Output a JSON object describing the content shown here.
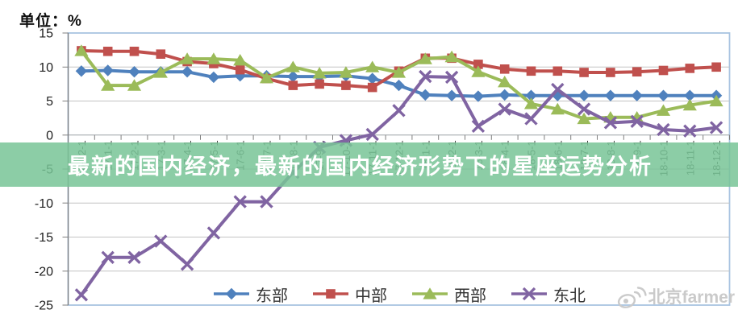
{
  "header": {
    "unit_label": "单位：%"
  },
  "overlay": {
    "title": "最新的国内经济，最新的国内经济形势下的星座运势分析",
    "band_color": "rgba(120,196,150,0.85)",
    "text_color": "#ffffff"
  },
  "watermark": {
    "icon": "weibo-eye-icon",
    "text": "北京farmer",
    "color": "#cacaca"
  },
  "chart_data": {
    "type": "line",
    "unit": "%",
    "categories": [
      "16-12-1",
      "17-1-1",
      "17-2-1",
      "17-3-1",
      "17-4-1",
      "17-5-1",
      "17-6-1",
      "17-7-1",
      "17-8-1",
      "17-9-1",
      "17-10-1",
      "17-11-1",
      "17-12-1",
      "18-1-1",
      "18-2-1",
      "18-3-1",
      "18-4-1",
      "18-5-1",
      "18-6-1",
      "18-7-1",
      "18-8-1",
      "18-9-1",
      "18-10-1",
      "18-11-1",
      "18-12-1"
    ],
    "series": [
      {
        "id": "east",
        "name": "东部",
        "color": "#4F81BD",
        "marker": "diamond",
        "values": [
          9.4,
          9.5,
          9.3,
          9.3,
          9.3,
          8.5,
          8.7,
          8.7,
          8.6,
          8.6,
          8.7,
          8.3,
          7.3,
          5.9,
          5.8,
          5.7,
          5.9,
          5.8,
          5.8,
          5.8,
          5.8,
          5.8,
          5.8,
          5.8,
          5.8
        ]
      },
      {
        "id": "central",
        "name": "中部",
        "color": "#C0504D",
        "marker": "square",
        "values": [
          12.4,
          12.3,
          12.3,
          11.9,
          10.8,
          10.5,
          9.6,
          8.3,
          7.3,
          7.5,
          7.3,
          7.0,
          9.4,
          11.3,
          11.3,
          10.4,
          9.7,
          9.4,
          9.4,
          9.2,
          9.2,
          9.3,
          9.5,
          9.8,
          10.0
        ]
      },
      {
        "id": "west",
        "name": "西部",
        "color": "#9BBB59",
        "marker": "triangle",
        "values": [
          12.4,
          7.3,
          7.3,
          9.2,
          11.2,
          11.2,
          11.0,
          8.4,
          10.0,
          9.1,
          9.2,
          10.0,
          9.2,
          11.2,
          11.5,
          9.3,
          7.8,
          4.6,
          3.8,
          2.4,
          2.6,
          2.6,
          3.6,
          4.4,
          5.0
        ]
      },
      {
        "id": "northeast",
        "name": "东北",
        "color": "#8064A2",
        "marker": "x",
        "values": [
          -23.5,
          -18.0,
          -18.0,
          -15.6,
          -19.0,
          -14.4,
          -9.8,
          -9.8,
          -5.5,
          -1.8,
          -0.8,
          0.1,
          3.6,
          8.6,
          8.5,
          1.3,
          3.8,
          2.4,
          6.7,
          3.8,
          1.8,
          2.0,
          0.8,
          0.6,
          1.1
        ]
      }
    ],
    "ylim": [
      -25,
      15
    ],
    "y_ticks": [
      15,
      10,
      5,
      0,
      -5,
      -10,
      -15,
      -20,
      -25
    ],
    "grid": true,
    "legend_position": "bottom",
    "x_labels_rotation": -90,
    "x_axis_cross_at": 0,
    "styles": {
      "plot_border": "#A9C4E1",
      "gridline": "#C3C3C3",
      "zero_line": "#9AA0A6",
      "axis_line": "#7F7F7F",
      "x_label_color": "#3D3D3D",
      "y_label_color": "#1F1F1F"
    }
  }
}
